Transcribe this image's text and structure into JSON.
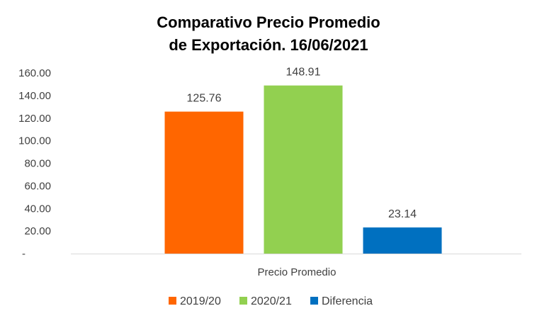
{
  "chart_data": {
    "type": "bar",
    "title_lines": [
      "Comparativo Precio Promedio",
      "de Exportación. 16/06/2021"
    ],
    "categories": [
      "Precio Promedio"
    ],
    "series": [
      {
        "name": "2019/20",
        "values": [
          125.76
        ],
        "label": "125.76",
        "color": "#FF6600"
      },
      {
        "name": "2020/21",
        "values": [
          148.91
        ],
        "label": "148.91",
        "color": "#92D050"
      },
      {
        "name": "Diferencia",
        "values": [
          23.14
        ],
        "label": "23.14",
        "color": "#0070C0"
      }
    ],
    "y_ticks": [
      {
        "value": 0,
        "label": "-"
      },
      {
        "value": 20,
        "label": "20.00"
      },
      {
        "value": 40,
        "label": "40.00"
      },
      {
        "value": 60,
        "label": "60.00"
      },
      {
        "value": 80,
        "label": "80.00"
      },
      {
        "value": 100,
        "label": "100.00"
      },
      {
        "value": 120,
        "label": "120.00"
      },
      {
        "value": 140,
        "label": "140.00"
      },
      {
        "value": 160,
        "label": "160.00"
      }
    ],
    "ylim": [
      0,
      160
    ],
    "grid": false,
    "legend_position": "bottom"
  }
}
